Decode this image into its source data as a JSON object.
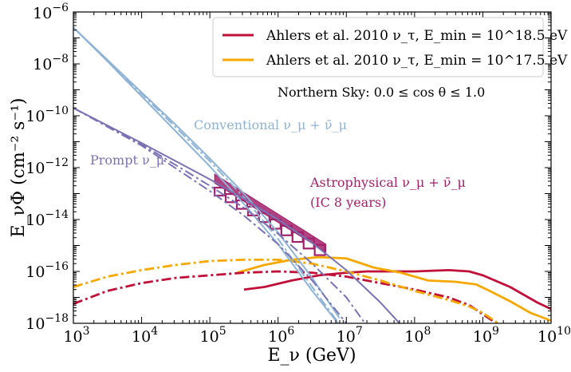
{
  "chart_data": {
    "type": "line",
    "xscale": "log",
    "yscale": "log",
    "xlim": [
      1000.0,
      10000000000.0
    ],
    "ylim": [
      1e-18,
      1e-06
    ],
    "xlabel": "E_ν (GeV)",
    "ylabel": "E_νΦ (cm⁻² s⁻¹)",
    "x_tick_labels": [
      "10^3",
      "10^4",
      "10^5",
      "10^6",
      "10^7",
      "10^8",
      "10^9",
      "10^10"
    ],
    "y_tick_labels": [
      "10^-18",
      "10^-16",
      "10^-14",
      "10^-12",
      "10^-10",
      "10^-8",
      "10^-6"
    ],
    "annotation": "Northern Sky: 0.0 ≤ cos θ ≤ 1.0",
    "colors": {
      "ahlers_185": "#c0103a",
      "ahlers_175": "#f5a800",
      "conventional": "#8fb3d4",
      "prompt": "#7a72b3",
      "astrophysical": "#a3206a"
    },
    "legend": [
      {
        "name": "Ahlers et al. 2010 ν_τ, E_min = 10^18.5 eV",
        "color": "#c0103a"
      },
      {
        "name": "Ahlers et al. 2010 ν_τ, E_min = 10^17.5 eV",
        "color": "#f5a800"
      }
    ],
    "labels": {
      "conventional": "Conventional ν_μ + ν̄_μ",
      "prompt": "Prompt ν_μ",
      "astrophysical_line1": "Astrophysical ν_μ + ν̄_μ",
      "astrophysical_line2": "(IC 8 years)"
    },
    "series": [
      {
        "name": "Ahlers 10^18.5 solid",
        "color": "#c0103a",
        "style": "solid",
        "x": [
          5.5,
          5.8,
          6.2,
          6.6,
          7.0,
          7.3,
          7.6,
          8.0,
          8.5,
          8.8,
          9.0,
          9.4,
          9.8,
          10.0
        ],
        "y": [
          -16.7,
          -16.6,
          -16.35,
          -16.15,
          -16.05,
          -16.0,
          -16.0,
          -16.0,
          -15.95,
          -16.0,
          -16.15,
          -16.6,
          -17.2,
          -17.45
        ]
      },
      {
        "name": "Ahlers 10^17.5 solid",
        "color": "#f5a800",
        "style": "solid",
        "x": [
          5.4,
          5.8,
          6.2,
          6.6,
          7.0,
          7.4,
          7.8,
          8.2,
          8.6,
          8.9,
          9.1,
          9.4,
          9.7,
          10.0
        ],
        "y": [
          -16.05,
          -15.75,
          -15.55,
          -15.45,
          -15.5,
          -15.85,
          -16.05,
          -16.35,
          -16.4,
          -16.5,
          -16.75,
          -17.15,
          -17.6,
          -17.9
        ]
      },
      {
        "name": "Ahlers 10^18.5 dash-dot",
        "color": "#c0103a",
        "style": "dashdot",
        "x": [
          3.0,
          3.5,
          4.0,
          4.5,
          5.0,
          5.5,
          6.0,
          6.5,
          7.0,
          7.5,
          8.0,
          8.5,
          8.8,
          9.0,
          9.2,
          9.35
        ],
        "y": [
          -17.25,
          -16.75,
          -16.45,
          -16.25,
          -16.15,
          -16.05,
          -16.0,
          -16.05,
          -16.2,
          -16.45,
          -16.7,
          -17.0,
          -17.3,
          -17.65,
          -18.0,
          -18.4
        ]
      },
      {
        "name": "Ahlers 10^17.5 dash-dot",
        "color": "#f5a800",
        "style": "dashdot",
        "x": [
          3.0,
          3.5,
          4.0,
          4.5,
          5.0,
          5.5,
          6.0,
          6.5,
          7.0,
          7.5,
          8.0,
          8.5,
          8.8,
          9.0,
          9.2,
          9.3
        ],
        "y": [
          -16.6,
          -16.2,
          -15.95,
          -15.75,
          -15.6,
          -15.55,
          -15.55,
          -15.7,
          -16.0,
          -16.35,
          -16.75,
          -17.1,
          -17.35,
          -17.6,
          -17.95,
          -18.2
        ]
      },
      {
        "name": "Conventional a",
        "color": "#8fb3d4",
        "style": "solid",
        "x": [
          3.0,
          3.5,
          4.0,
          4.5,
          5.0,
          5.5,
          6.0,
          6.5,
          6.9
        ],
        "y": [
          -6.6,
          -7.85,
          -9.1,
          -10.35,
          -11.65,
          -13.0,
          -14.5,
          -16.25,
          -17.8
        ]
      },
      {
        "name": "Conventional b",
        "color": "#8fb3d4",
        "style": "dashdot",
        "x": [
          3.0,
          3.5,
          4.0,
          4.5,
          5.0,
          5.5,
          6.0,
          6.5,
          7.0
        ],
        "y": [
          -6.6,
          -7.85,
          -9.15,
          -10.45,
          -11.75,
          -13.15,
          -14.75,
          -16.6,
          -18.4
        ]
      },
      {
        "name": "Conventional c",
        "color": "#8fb3d4",
        "style": "solid",
        "x": [
          3.0,
          3.5,
          4.0,
          4.5,
          5.0,
          5.5,
          6.0,
          6.5,
          7.0
        ],
        "y": [
          -6.6,
          -7.9,
          -9.25,
          -10.6,
          -11.95,
          -13.4,
          -14.95,
          -16.75,
          -18.4
        ]
      },
      {
        "name": "Prompt solid",
        "color": "#7a72b3",
        "style": "solid",
        "x": [
          3.0,
          4.0,
          5.0,
          5.5,
          6.0,
          6.5,
          7.0,
          7.5,
          7.78
        ],
        "y": [
          -9.7,
          -11.05,
          -12.45,
          -13.2,
          -14.0,
          -14.9,
          -15.95,
          -17.2,
          -18.0
        ]
      },
      {
        "name": "Prompt dash-dot a",
        "color": "#7a72b3",
        "style": "dashdot",
        "x": [
          3.0,
          4.0,
          5.0,
          5.5,
          6.0,
          6.5,
          7.0,
          7.3
        ],
        "y": [
          -9.7,
          -11.1,
          -12.7,
          -13.55,
          -14.55,
          -15.7,
          -17.0,
          -18.1
        ]
      },
      {
        "name": "Prompt dash-dot b",
        "color": "#7a72b3",
        "style": "dashdot",
        "x": [
          3.0,
          4.0,
          5.0,
          5.5,
          6.0,
          6.5,
          7.0
        ],
        "y": [
          -9.7,
          -11.15,
          -12.9,
          -13.85,
          -14.95,
          -16.35,
          -18.0
        ]
      }
    ],
    "astrophysical_band": {
      "x_range_log": [
        5.07,
        6.7
      ],
      "upper_log": [
        -12.25,
        -14.95
      ],
      "lower_log": [
        -12.6,
        -15.25
      ],
      "inner_upper_log": [
        -12.65,
        -15.1
      ],
      "inner_lower_log": [
        -12.95,
        -15.5
      ]
    }
  }
}
